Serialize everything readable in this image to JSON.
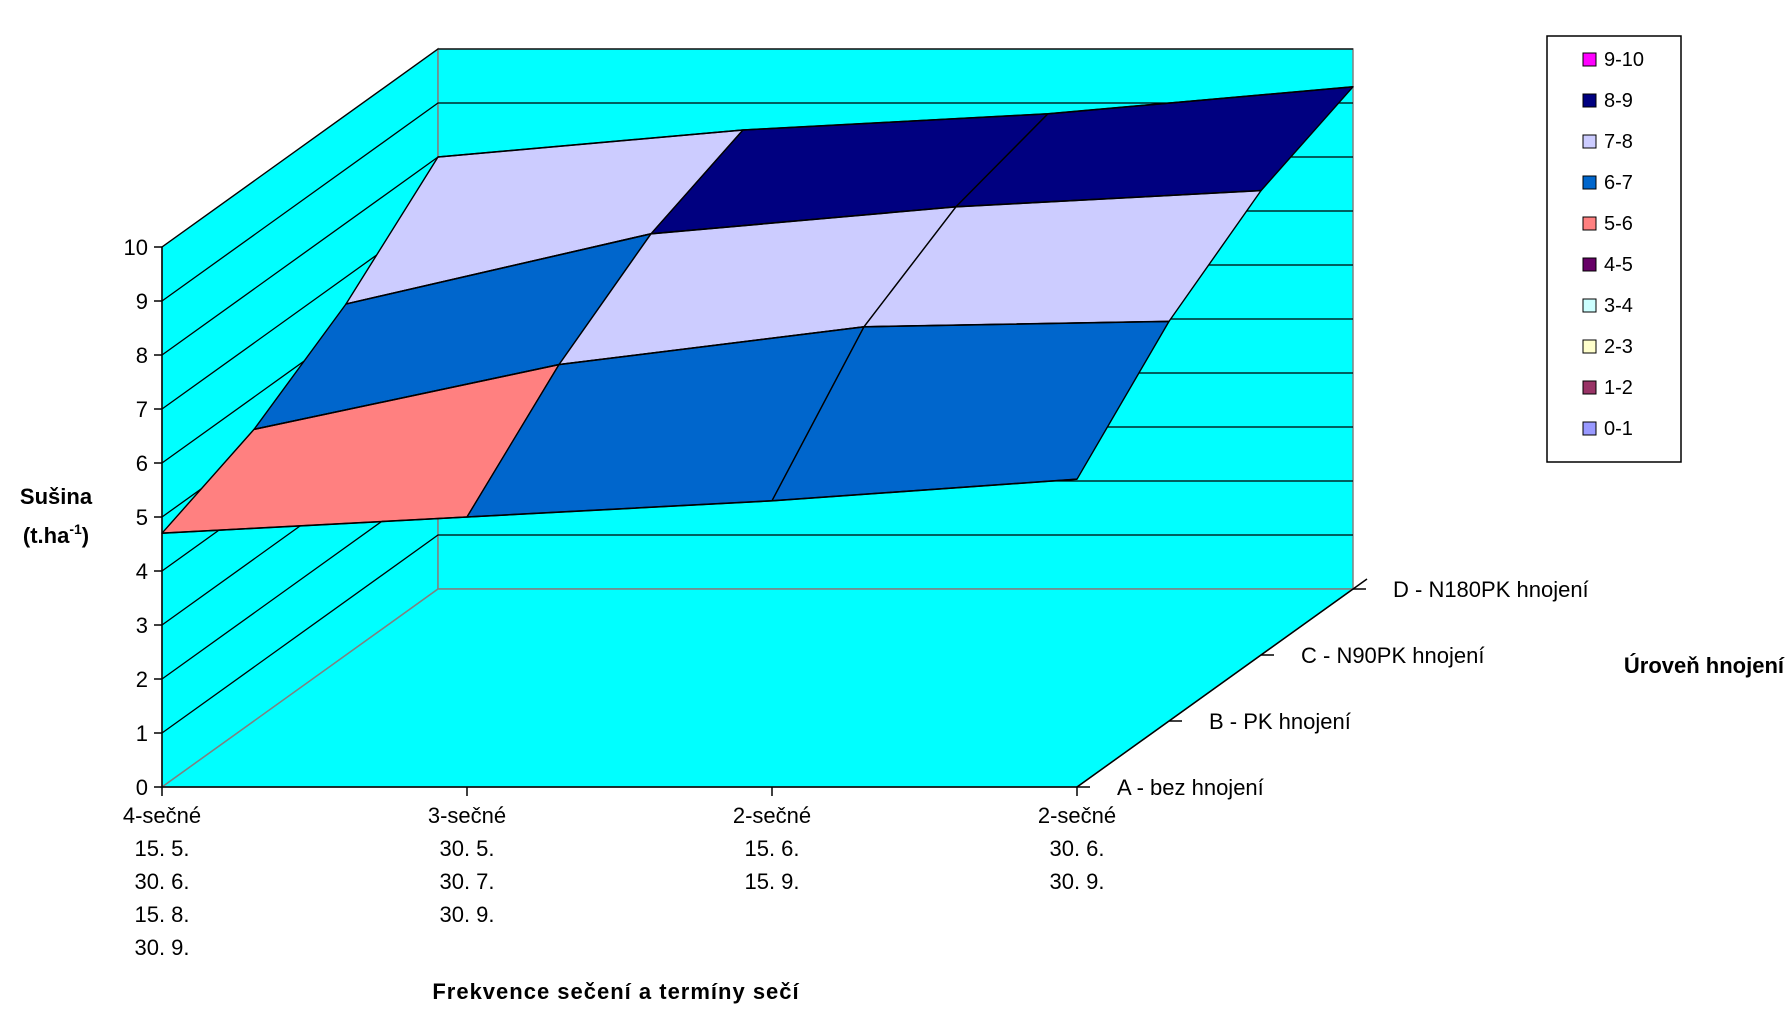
{
  "chart_data": {
    "type": "surface",
    "title": "",
    "ylabel": "Sušina",
    "ylabel_unit": [
      "(t.ha",
      "-1",
      ")"
    ],
    "xlabel": "Frekvence sečení a termíny sečí",
    "zlabel": "Úroveň hnojení",
    "ylim": [
      0,
      10
    ],
    "yticks": [
      "0",
      "1",
      "2",
      "3",
      "4",
      "5",
      "6",
      "7",
      "8",
      "9",
      "10"
    ],
    "categories": [
      [
        "4-sečné",
        "15. 5.",
        "30. 6.",
        "15. 8.",
        "30. 9."
      ],
      [
        "3-sečné",
        "30. 5.",
        "30. 7.",
        "30. 9."
      ],
      [
        "2-sečné",
        "15. 6.",
        "15. 9."
      ],
      [
        "2-sečné",
        "30. 6.",
        "30. 9."
      ]
    ],
    "series": [
      {
        "name": "A - bez hnojení",
        "values": [
          4.7,
          5.0,
          5.3,
          5.7
        ]
      },
      {
        "name": "B - PK hnojení",
        "values": [
          5.4,
          6.6,
          7.3,
          7.4
        ]
      },
      {
        "name": "C - N90PK hnojení",
        "values": [
          6.5,
          7.8,
          8.3,
          8.6
        ]
      },
      {
        "name": "D - N180PK hnojení",
        "values": [
          8.0,
          8.5,
          8.8,
          9.3
        ]
      }
    ],
    "legend": {
      "position": "right",
      "items": [
        {
          "label": "9-10",
          "color": "#FF00FF"
        },
        {
          "label": "8-9",
          "color": "#000080"
        },
        {
          "label": "7-8",
          "color": "#CCCCFF"
        },
        {
          "label": "6-7",
          "color": "#0066CC"
        },
        {
          "label": "5-6",
          "color": "#FF8080"
        },
        {
          "label": "4-5",
          "color": "#660066"
        },
        {
          "label": "3-4",
          "color": "#CCFFFF"
        },
        {
          "label": "2-3",
          "color": "#FFFFCC"
        },
        {
          "label": "1-2",
          "color": "#993366"
        },
        {
          "label": "0-1",
          "color": "#9999FF"
        }
      ]
    },
    "colors": {
      "walls": "#00FFFF",
      "grid": "#000000",
      "wall_edge": "#808080"
    }
  }
}
